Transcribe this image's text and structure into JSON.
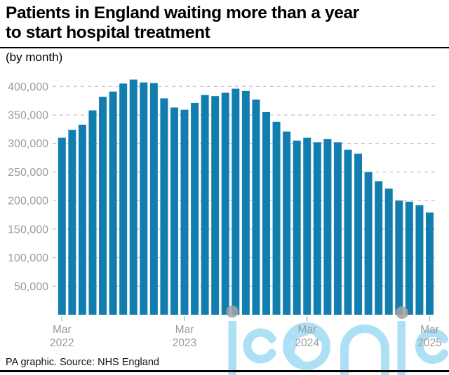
{
  "header": {
    "title_line1": "Patients in England waiting more than a year",
    "title_line2": "to start hospital treatment",
    "subtitle": "(by month)"
  },
  "footer": {
    "source": "PA graphic. Source: NHS England"
  },
  "watermark": {
    "text": "iconic",
    "color": "#aee0f5",
    "dot_color": "#a3a3a3"
  },
  "chart_data": {
    "type": "bar",
    "title": "Patients in England waiting more than a year to start hospital treatment",
    "subtitle": "(by month)",
    "unit": "patients waiting more than 52 weeks",
    "bar_color": "#127eb0",
    "grid_color": "#c9c9c9",
    "axis_label_color": "#9b9b9b",
    "tick_color": "#aaaaaa",
    "grid": true,
    "grid_style": "dashed",
    "legend": "none",
    "ylim": [
      0,
      420000
    ],
    "yticks": [
      {
        "value": 50000,
        "label": "50,000"
      },
      {
        "value": 100000,
        "label": "100,000"
      },
      {
        "value": 150000,
        "label": "150,000"
      },
      {
        "value": 200000,
        "label": "200,000"
      },
      {
        "value": 250000,
        "label": "250,000"
      },
      {
        "value": 300000,
        "label": "300,000"
      },
      {
        "value": 350000,
        "label": "350,000"
      },
      {
        "value": 400000,
        "label": "400,000"
      }
    ],
    "categories": [
      "Mar 2022",
      "Apr 2022",
      "May 2022",
      "Jun 2022",
      "Jul 2022",
      "Aug 2022",
      "Sep 2022",
      "Oct 2022",
      "Nov 2022",
      "Dec 2022",
      "Jan 2023",
      "Feb 2023",
      "Mar 2023",
      "Apr 2023",
      "May 2023",
      "Jun 2023",
      "Jul 2023",
      "Aug 2023",
      "Sep 2023",
      "Oct 2023",
      "Nov 2023",
      "Dec 2023",
      "Jan 2024",
      "Feb 2024",
      "Mar 2024",
      "Apr 2024",
      "May 2024",
      "Jun 2024",
      "Jul 2024",
      "Aug 2024",
      "Sep 2024",
      "Oct 2024",
      "Nov 2024",
      "Dec 2024",
      "Jan 2025",
      "Feb 2025",
      "Mar 2025"
    ],
    "values": [
      310000,
      324000,
      333000,
      358000,
      382000,
      391000,
      405000,
      412000,
      407000,
      406000,
      379000,
      363000,
      359000,
      371000,
      385000,
      383000,
      389000,
      396000,
      392000,
      377000,
      355000,
      338000,
      321000,
      305000,
      310000,
      302000,
      308000,
      302000,
      289000,
      282000,
      250000,
      234000,
      221000,
      200000,
      198000,
      192000,
      179000
    ],
    "x_ticks": [
      {
        "index": 0,
        "line1": "Mar",
        "line2": "2022"
      },
      {
        "index": 12,
        "line1": "Mar",
        "line2": "2023"
      },
      {
        "index": 24,
        "line1": "Mar",
        "line2": "2024"
      },
      {
        "index": 36,
        "line1": "Mar",
        "line2": "2025"
      }
    ]
  }
}
